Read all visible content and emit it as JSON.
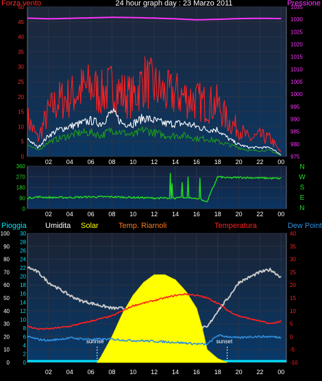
{
  "chart_data": [
    {
      "type": "line",
      "title": "24 hour graph day : 23 Marzo 2011",
      "left_axis_label": "Forza vento",
      "right_axis_label": "Pressione",
      "left_ylim": [
        0,
        50
      ],
      "left_ticks": [
        0,
        5,
        10,
        15,
        20,
        25,
        30,
        35,
        40,
        45,
        50
      ],
      "right_ylim": [
        975,
        1035
      ],
      "right_ticks": [
        975,
        980,
        985,
        990,
        995,
        1000,
        1005,
        1010,
        1015,
        1020,
        1025,
        1030,
        1035
      ],
      "x_ticks": [
        "02",
        "04",
        "06",
        "08",
        "10",
        "12",
        "14",
        "16",
        "18",
        "20",
        "22",
        "00"
      ],
      "grid": true,
      "series": [
        {
          "color": "#ff2020",
          "axis": "left",
          "x": [
            0,
            1,
            2,
            3,
            4,
            5,
            6,
            7,
            8,
            9,
            10,
            11,
            12,
            13,
            14,
            15,
            16,
            17,
            18,
            19,
            20,
            21,
            22,
            23,
            24
          ],
          "y": [
            11,
            5,
            13,
            16,
            17,
            19,
            20,
            18,
            20,
            18,
            17,
            22,
            20,
            18,
            18,
            17,
            16,
            15,
            15,
            10,
            8,
            5,
            6,
            5,
            1
          ]
        },
        {
          "color": "#ffffff",
          "axis": "left",
          "x": [
            0,
            1,
            2,
            3,
            4,
            5,
            6,
            7,
            8,
            9,
            10,
            11,
            12,
            13,
            14,
            15,
            16,
            17,
            18,
            19,
            20,
            21,
            22,
            23,
            24
          ],
          "y": [
            6,
            3,
            7,
            9,
            10,
            11,
            12,
            11,
            15,
            11,
            11,
            13,
            12,
            11,
            11,
            11,
            10,
            9,
            9,
            6,
            4,
            3,
            3,
            3,
            0.5
          ]
        },
        {
          "color": "#1e9a1e",
          "axis": "left",
          "x": [
            0,
            1,
            2,
            3,
            4,
            5,
            6,
            7,
            8,
            9,
            10,
            11,
            12,
            13,
            14,
            15,
            16,
            17,
            18,
            19,
            20,
            21,
            22,
            23,
            24
          ],
          "y": [
            4,
            2,
            5,
            6,
            7,
            8,
            8,
            7,
            9,
            8,
            7,
            9,
            8,
            7,
            7,
            7,
            6,
            6,
            5,
            4,
            3,
            2,
            2,
            2,
            0.3
          ]
        },
        {
          "color": "#ff33ff",
          "axis": "right",
          "x": [
            0,
            2,
            4,
            6,
            8,
            10,
            12,
            14,
            16,
            18,
            20,
            22,
            24
          ],
          "y": [
            1030.5,
            1030.2,
            1030.4,
            1030.6,
            1030.8,
            1030.7,
            1030.5,
            1030.2,
            1029.8,
            1030,
            1030.3,
            1030.4,
            1030.3
          ]
        }
      ]
    },
    {
      "type": "line",
      "left_ylim": [
        0,
        360
      ],
      "left_ticks": [
        0,
        90,
        180,
        270,
        360
      ],
      "right_labels": [
        "N",
        "W",
        "S",
        "E",
        "N"
      ],
      "x_ticks": [
        "02",
        "04",
        "06",
        "08",
        "10",
        "12",
        "14",
        "16",
        "18",
        "20",
        "22",
        "00"
      ],
      "grid": true,
      "series": [
        {
          "color": "#22dd22",
          "x": [
            0,
            1,
            2,
            4,
            6,
            8,
            10,
            12,
            14,
            16,
            17,
            18,
            19,
            20,
            22,
            24
          ],
          "y": [
            90,
            100,
            95,
            95,
            100,
            100,
            95,
            90,
            90,
            90,
            60,
            270,
            260,
            265,
            260,
            255
          ]
        }
      ]
    },
    {
      "type": "line",
      "series_labels": [
        "Pioggia",
        "Umidita",
        "Solar",
        "Temp. Riarnoli",
        "Temperatura",
        "Dew Point"
      ],
      "left_ylim": [
        0,
        100
      ],
      "left_ticks": [
        0,
        10,
        20,
        30,
        40,
        50,
        60,
        70,
        80,
        90,
        100
      ],
      "rain_ticks": [
        0,
        2,
        4,
        6,
        8,
        10,
        12,
        14,
        16,
        18,
        20,
        22,
        24,
        26,
        28,
        30
      ],
      "right_ylim": [
        -10,
        40
      ],
      "right_ticks": [
        -10,
        -5,
        0,
        5,
        10,
        15,
        20,
        25,
        30,
        35,
        40
      ],
      "x_ticks": [
        "02",
        "04",
        "06",
        "08",
        "10",
        "12",
        "14",
        "16",
        "18",
        "20",
        "22",
        "00"
      ],
      "annotations": [
        {
          "label": "sunrise",
          "x": 6.6
        },
        {
          "label": "sunset",
          "x": 18.9
        }
      ],
      "grid": true,
      "series": [
        {
          "color": "#c8c8c8",
          "axis": "left",
          "x": [
            0,
            1,
            2,
            3,
            4,
            5,
            6,
            7,
            8,
            9,
            10,
            11,
            12,
            13,
            14,
            15,
            16,
            17,
            18,
            19,
            20,
            21,
            22,
            23,
            24
          ],
          "y": [
            74,
            70,
            62,
            57,
            52,
            48,
            46,
            44,
            42,
            42,
            40,
            36,
            34,
            32,
            30,
            29,
            27,
            27,
            40,
            50,
            62,
            66,
            70,
            72,
            66
          ]
        },
        {
          "color": "#ffff00",
          "axis": "left",
          "x": [
            6.6,
            7,
            8,
            9,
            10,
            11,
            12,
            13,
            14,
            15,
            16,
            16.5,
            17,
            18,
            18.9
          ],
          "y": [
            0,
            5,
            20,
            38,
            52,
            62,
            68,
            68,
            64,
            55,
            42,
            28,
            10,
            3,
            0
          ]
        },
        {
          "color": "#ff2020",
          "axis": "right",
          "x": [
            0,
            1,
            2,
            3,
            4,
            5,
            6,
            7,
            8,
            9,
            10,
            11,
            12,
            13,
            14,
            15,
            16,
            17,
            18,
            19,
            20,
            21,
            22,
            23,
            24
          ],
          "y": [
            4,
            3,
            3,
            3.5,
            4,
            5,
            6,
            7,
            8,
            10,
            12,
            13,
            14,
            15,
            16,
            16.5,
            16,
            15,
            13,
            10,
            8,
            7,
            6,
            5,
            6
          ]
        },
        {
          "color": "#2e8fdf",
          "axis": "right",
          "x": [
            0,
            1,
            2,
            3,
            4,
            5,
            6,
            7,
            8,
            9,
            10,
            11,
            12,
            13,
            14,
            15,
            16,
            17,
            18,
            19,
            20,
            21,
            22,
            23,
            24
          ],
          "y": [
            0,
            -1,
            -1.5,
            -1,
            -0.5,
            -0.8,
            -1,
            -1,
            -1,
            -1.3,
            -1.5,
            -1.6,
            -1.8,
            -2,
            -2.2,
            -2.5,
            -2.8,
            -3,
            0.5,
            0,
            -0.5,
            0,
            0,
            0,
            -0.3
          ]
        }
      ]
    }
  ]
}
